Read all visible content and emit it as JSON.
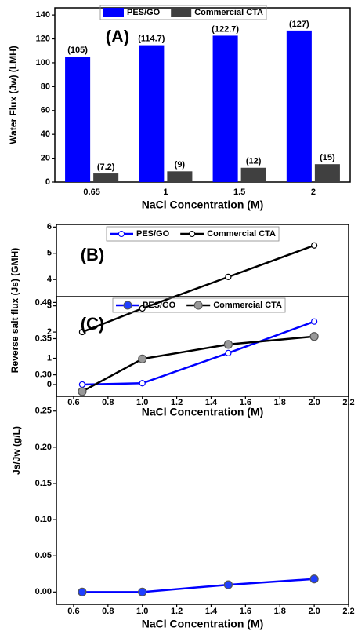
{
  "chart_data": [
    {
      "type": "bar",
      "annotation": "(A)",
      "x_label": "NaCl Concentration (M)",
      "y_label": "Water Flux (Jw) (LMH)",
      "categories": [
        "0.65",
        "1",
        "1.5",
        "2"
      ],
      "series": [
        {
          "name": "PES/GO",
          "color": "#0000ff",
          "values": [
            105,
            114.7,
            122.7,
            127
          ],
          "value_labels": [
            "(105)",
            "(114.7)",
            "(122.7)",
            "(127)"
          ]
        },
        {
          "name": "Commercial CTA",
          "color": "#404040",
          "values": [
            7.2,
            9,
            12,
            15
          ],
          "value_labels": [
            "(7.2)",
            "(9)",
            "(12)",
            "(15)"
          ]
        }
      ],
      "ylim": [
        0,
        146
      ],
      "yticks": [
        0,
        20,
        40,
        60,
        80,
        100,
        120,
        140
      ],
      "legend": "top"
    },
    {
      "type": "line",
      "annotation": "(B)",
      "x_label": "NaCl Concentration (M)",
      "y_label": "Reverse salt flux (Js) (GMH)",
      "x": [
        0.65,
        1.0,
        1.5,
        2.0
      ],
      "series": [
        {
          "name": "PES/GO",
          "color": "#0000ff",
          "marker_color": "#ffffff",
          "values": [
            0,
            0.05,
            1.2,
            2.4
          ]
        },
        {
          "name": "Commercial CTA",
          "color": "#000000",
          "marker_color": "#ffffff",
          "values": [
            2,
            2.9,
            4.1,
            5.3
          ]
        }
      ],
      "xlim": [
        0.5,
        2.2
      ],
      "xticks": [
        0.6,
        0.8,
        {
          "value": 1.0,
          "label": "1.0"
        },
        1.2,
        1.4,
        1.6,
        1.8,
        {
          "value": 2.0,
          "label": "2.0"
        },
        2.2
      ],
      "ylim": [
        -0.45,
        6.1
      ],
      "yticks": [
        0,
        1,
        2,
        3,
        4,
        5,
        6
      ],
      "legend": "top"
    },
    {
      "type": "line",
      "annotation": "(C)",
      "x_label": "NaCl Concentration (M)",
      "y_label": "Js/Jw (g/L)",
      "x": [
        0.65,
        1.0,
        1.5,
        2.0
      ],
      "series": [
        {
          "name": "PES/GO",
          "color": "#0000ff",
          "marker_color": "#1f3fff",
          "values": [
            0,
            0,
            0.01,
            0.018
          ]
        },
        {
          "name": "Commercial CTA",
          "color": "#000000",
          "marker_color": "#999999",
          "values": [
            0.277,
            0.322,
            0.342,
            0.353
          ]
        }
      ],
      "xlim": [
        0.5,
        2.2
      ],
      "xticks": [
        0.6,
        0.8,
        {
          "value": 1.0,
          "label": "1.0"
        },
        1.2,
        1.4,
        1.6,
        1.8,
        {
          "value": 2.0,
          "label": "2.0"
        },
        2.2
      ],
      "ylim": [
        -0.017,
        0.408
      ],
      "yticks": [
        {
          "value": 0,
          "label": "0.00"
        },
        0.05,
        {
          "value": 0.1,
          "label": "0.10"
        },
        0.15,
        {
          "value": 0.2,
          "label": "0.20"
        },
        0.25,
        {
          "value": 0.3,
          "label": "0.30"
        },
        0.35,
        {
          "value": 0.4,
          "label": "0.40"
        }
      ],
      "legend": "top"
    }
  ]
}
